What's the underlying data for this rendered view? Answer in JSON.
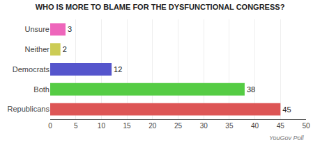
{
  "chart_data": {
    "type": "bar",
    "orientation": "horizontal",
    "title": "WHO IS MORE TO BLAME FOR THE DYSFUNCTIONAL CONGRESS?",
    "categories": [
      "Republicans",
      "Both",
      "Democrats",
      "Neither",
      "Unsure"
    ],
    "values": [
      45,
      38,
      12,
      2,
      3
    ],
    "colors": [
      "#dd5555",
      "#55cc44",
      "#5555cc",
      "#cccc55",
      "#ee66bb"
    ],
    "xlim": [
      0,
      50
    ],
    "xticks": [
      0,
      5,
      10,
      15,
      20,
      25,
      30,
      35,
      40,
      45,
      50
    ],
    "grid": true,
    "data_labels": true,
    "annotations": [
      "YouGov Poll"
    ]
  }
}
